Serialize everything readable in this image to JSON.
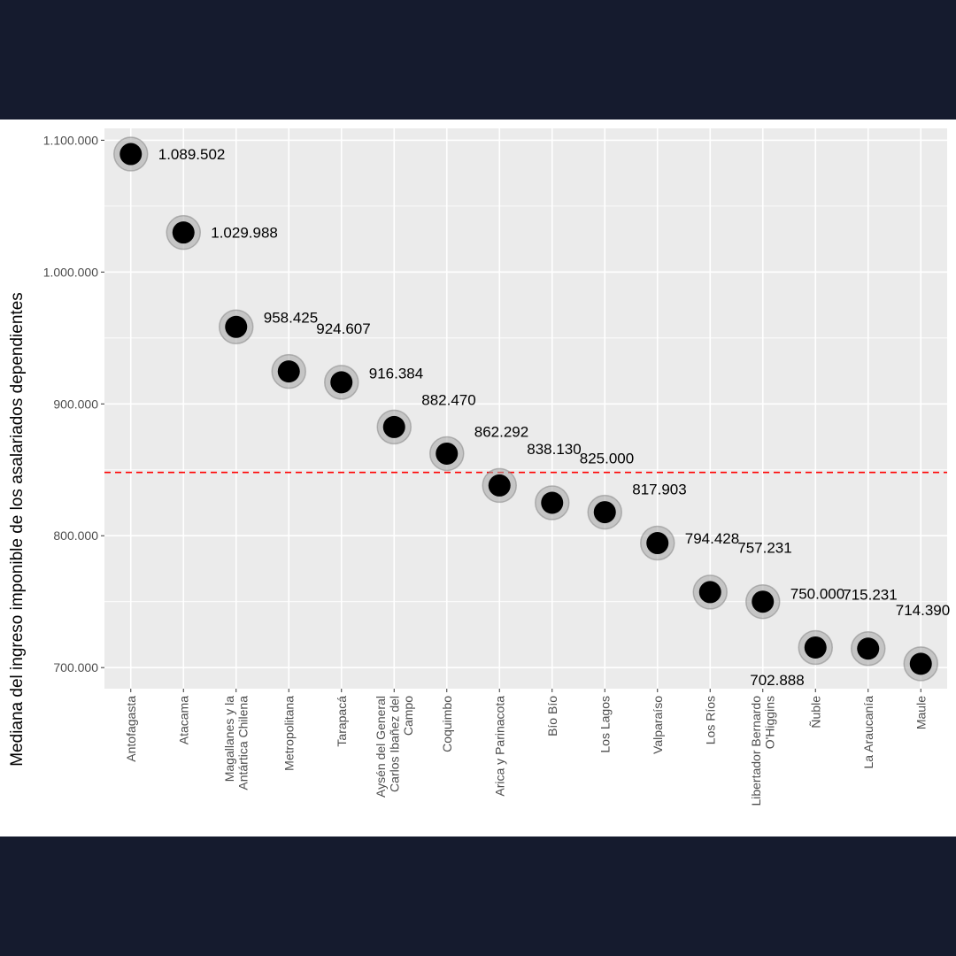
{
  "chart_data": {
    "type": "scatter",
    "title": "",
    "xlabel": "",
    "ylabel": "Mediana del ingreso imponible de los asalariados dependientes",
    "ylim": [
      684000,
      1109000
    ],
    "yticks": [
      700000,
      800000,
      900000,
      1000000,
      1100000
    ],
    "ytick_labels": [
      "700.000",
      "800.000",
      "900.000",
      "1.000.000",
      "1.100.000"
    ],
    "grid": true,
    "reference_line": {
      "value": 848000,
      "color": "#ff0000",
      "style": "dashed"
    },
    "categories": [
      [
        "Antofagasta"
      ],
      [
        "Atacama"
      ],
      [
        "Magallanes y la",
        "Antártica Chilena"
      ],
      [
        "Metropolitana"
      ],
      [
        "Tarapacá"
      ],
      [
        "Aysén del General",
        "Carlos Ibañez del",
        "Campo"
      ],
      [
        "Coquimbo"
      ],
      [
        "Arica y Parinacota"
      ],
      [
        "Bío Bío"
      ],
      [
        "Los Lagos"
      ],
      [
        "Valparaíso"
      ],
      [
        "Los Ríos"
      ],
      [
        "Libertador Bernardo",
        "O'Higgins"
      ],
      [
        "Ñuble"
      ],
      [
        "La Araucanía"
      ],
      [
        "Maule"
      ]
    ],
    "values": [
      1089502,
      1029988,
      958425,
      924607,
      916384,
      882470,
      862292,
      838130,
      825000,
      817903,
      794428,
      757231,
      750000,
      715231,
      714390,
      702888
    ],
    "data_labels": [
      "1.089.502",
      "1.029.988",
      "958.425",
      "924.607",
      "916.384",
      "882.470",
      "862.292",
      "838.130",
      "825.000",
      "817.903",
      "794.428",
      "757.231",
      "750.000",
      "715.231",
      "714.390",
      "702.888"
    ],
    "colors": {
      "panel": "#ebebeb",
      "grid": "#ffffff",
      "point": "#000000",
      "halo": "#a6a6a6",
      "reference": "#ff0000"
    }
  }
}
